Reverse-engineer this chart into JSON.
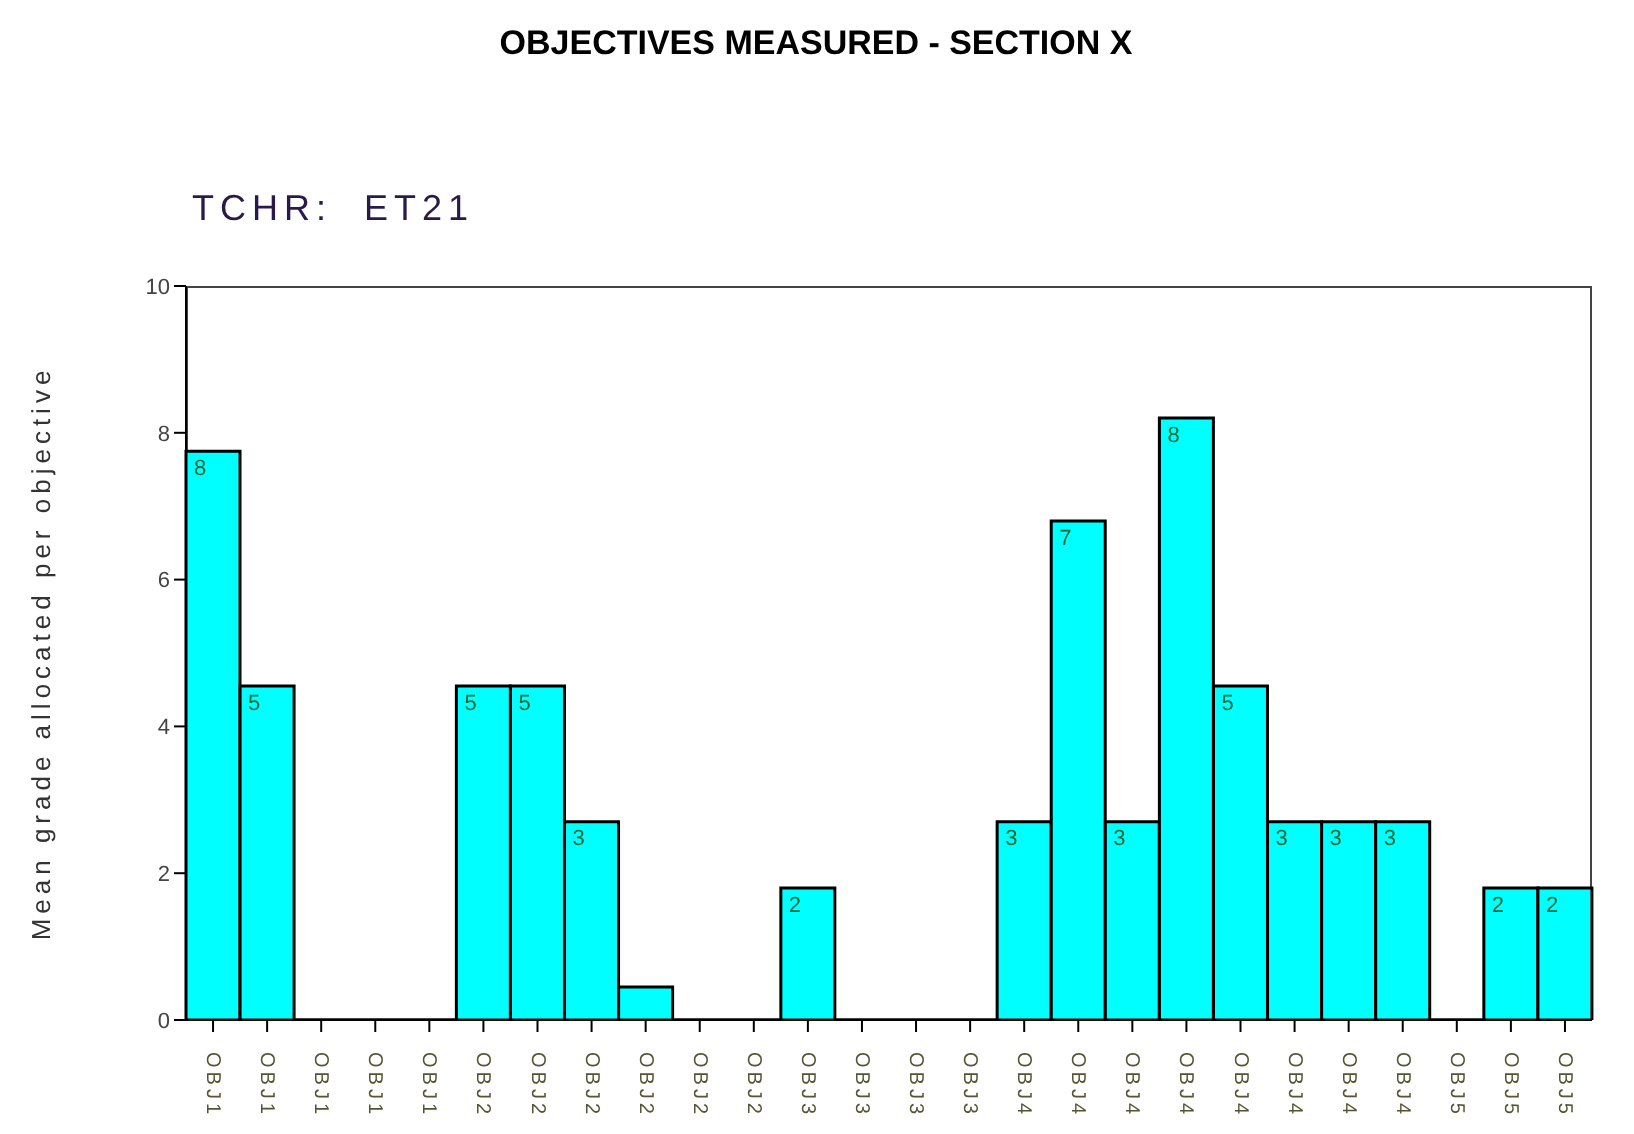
{
  "chart_data": {
    "type": "bar",
    "title": "OBJECTIVES MEASURED - SECTION X",
    "subtitle": "TCHR:  ET21",
    "ylabel": "Mean grade allocated per objective",
    "categories": [
      "OBJ1",
      "OBJ1",
      "OBJ1",
      "OBJ1",
      "OBJ1",
      "OBJ2",
      "OBJ2",
      "OBJ2",
      "OBJ2",
      "OBJ2",
      "OBJ2",
      "OBJ3",
      "OBJ3",
      "OBJ3",
      "OBJ3",
      "OBJ4",
      "OBJ4",
      "OBJ4",
      "OBJ4",
      "OBJ4",
      "OBJ4",
      "OBJ4",
      "OBJ4",
      "OBJ5",
      "OBJ5",
      "OBJ5"
    ],
    "values": [
      7.75,
      4.55,
      0,
      0,
      0,
      4.55,
      4.55,
      2.7,
      0.45,
      0,
      0,
      1.8,
      0,
      0,
      0,
      2.7,
      6.8,
      2.7,
      8.2,
      4.55,
      2.7,
      2.7,
      2.7,
      0,
      1.8,
      1.8
    ],
    "value_labels": [
      "8",
      "5",
      null,
      null,
      null,
      "5",
      "5",
      "3",
      null,
      null,
      null,
      "2",
      null,
      null,
      null,
      "3",
      "7",
      "3",
      "8",
      "5",
      "3",
      "3",
      "3",
      null,
      "2",
      "2"
    ],
    "color": "#00ffff",
    "ylim": [
      0,
      10
    ],
    "yticks": [
      0,
      2,
      4,
      6,
      8,
      10
    ],
    "grid": false,
    "legend": false
  }
}
